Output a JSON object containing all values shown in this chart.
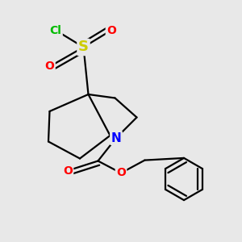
{
  "background_color": "#e8e8e8",
  "figsize": [
    3.0,
    3.0
  ],
  "dpi": 100,
  "atom_colors": {
    "Cl": "#00bb00",
    "S": "#cccc00",
    "O": "#ff0000",
    "N": "#0000ff",
    "C": "#000000"
  },
  "bond_color": "#000000",
  "bond_lw": 1.6
}
